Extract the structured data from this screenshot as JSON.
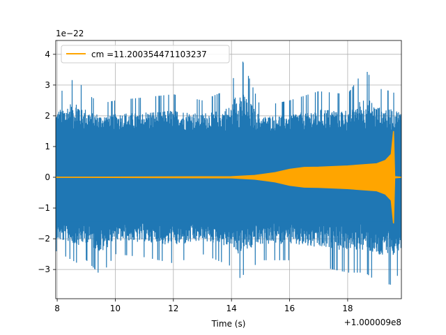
{
  "chart_data": {
    "type": "line",
    "title": "",
    "xlabel": "Time (s)",
    "ylabel": "",
    "x_offset_text": "+1.000009e8",
    "y_offset_text": "1e−22",
    "xlim": [
      7.95,
      19.85
    ],
    "ylim": [
      -3.95,
      4.45
    ],
    "xticks": [
      8,
      10,
      12,
      14,
      16,
      18
    ],
    "xtick_labels": [
      "8",
      "10",
      "12",
      "14",
      "16",
      "18"
    ],
    "yticks": [
      -3,
      -2,
      -1,
      0,
      1,
      2,
      3,
      4
    ],
    "ytick_labels": [
      "−3",
      "−2",
      "−1",
      "0",
      "1",
      "2",
      "3",
      "4"
    ],
    "grid": true,
    "legend_position": "upper-left",
    "series": [
      {
        "name": "",
        "color": "#1f77b4",
        "description": "detector strain data (noise), x in s relative to offset, y in units of 1e-22",
        "x": [
          7.95,
          8.7,
          8.9,
          9.5,
          10.0,
          11.0,
          12.0,
          13.0,
          14.0,
          14.25,
          15.0,
          16.0,
          17.0,
          18.0,
          18.6,
          19.0,
          19.5,
          19.85
        ],
        "upper": [
          2.6,
          3.35,
          2.8,
          2.4,
          2.5,
          2.6,
          2.7,
          2.5,
          2.9,
          4.1,
          2.3,
          2.5,
          2.8,
          2.7,
          3.55,
          2.9,
          2.8,
          2.6
        ],
        "lower": [
          -2.4,
          -2.8,
          -2.6,
          -3.2,
          -2.5,
          -2.6,
          -2.8,
          -2.5,
          -2.9,
          -3.3,
          -2.7,
          -2.7,
          -2.9,
          -3.1,
          -3.1,
          -3.4,
          -3.5,
          -3.0
        ]
      },
      {
        "name": "cm =11.200354471103237",
        "color": "#ffa500",
        "description": "signal template envelope, symmetric about 0",
        "x": [
          7.95,
          14.0,
          14.8,
          15.5,
          16.0,
          16.5,
          17.0,
          18.0,
          19.0,
          19.3,
          19.5,
          19.58,
          19.62,
          19.85
        ],
        "amplitude": [
          0.0,
          0.02,
          0.06,
          0.15,
          0.26,
          0.32,
          0.33,
          0.37,
          0.44,
          0.55,
          0.75,
          1.5,
          0.02,
          0.0
        ]
      }
    ]
  }
}
